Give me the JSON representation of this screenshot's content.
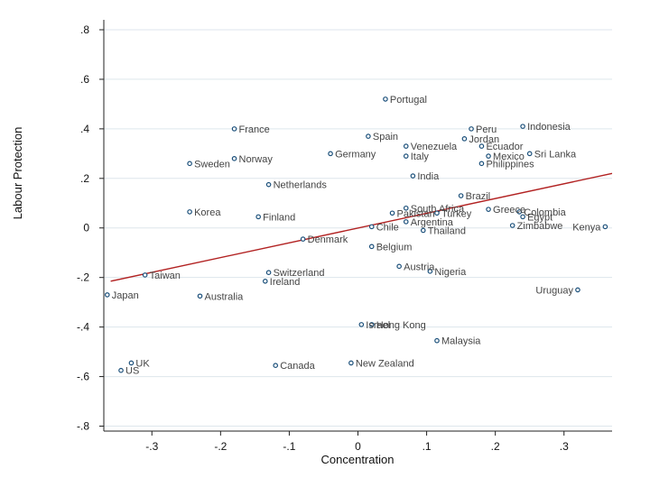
{
  "chart_data": {
    "type": "scatter",
    "xlabel": "Concentration",
    "ylabel": "Labour Protection",
    "xlim": [
      -0.37,
      0.37
    ],
    "ylim": [
      -0.82,
      0.84
    ],
    "xticks": [
      -0.3,
      -0.2,
      -0.1,
      0,
      0.1,
      0.2,
      0.3
    ],
    "xtick_labels": [
      "-.3",
      "-.2",
      "-.1",
      "0",
      ".1",
      ".2",
      ".3"
    ],
    "yticks": [
      0.8,
      0.6,
      0.4,
      0.2,
      0,
      -0.2,
      -0.4,
      -0.6,
      -0.8
    ],
    "ytick_labels": [
      ".8",
      ".6",
      ".4",
      ".2",
      "0",
      "-.2",
      "-.4",
      "-.6",
      "-.8"
    ],
    "fit_line": {
      "x": [
        -0.36,
        0.37
      ],
      "y": [
        -0.215,
        0.22
      ],
      "color": "#b22222"
    },
    "point_color": "#1a4f7a",
    "points": [
      {
        "label": "Portugal",
        "x": 0.04,
        "y": 0.52
      },
      {
        "label": "France",
        "x": -0.18,
        "y": 0.4
      },
      {
        "label": "Peru",
        "x": 0.165,
        "y": 0.4
      },
      {
        "label": "Indonesia",
        "x": 0.24,
        "y": 0.41
      },
      {
        "label": "Spain",
        "x": 0.015,
        "y": 0.37
      },
      {
        "label": "Jordan",
        "x": 0.155,
        "y": 0.36
      },
      {
        "label": "Venezuela",
        "x": 0.07,
        "y": 0.33
      },
      {
        "label": "Ecuador",
        "x": 0.18,
        "y": 0.33
      },
      {
        "label": "Germany",
        "x": -0.04,
        "y": 0.3
      },
      {
        "label": "Italy",
        "x": 0.07,
        "y": 0.29
      },
      {
        "label": "Mexico",
        "x": 0.19,
        "y": 0.29
      },
      {
        "label": "Sri Lanka",
        "x": 0.25,
        "y": 0.3
      },
      {
        "label": "Norway",
        "x": -0.18,
        "y": 0.28
      },
      {
        "label": "Sweden",
        "x": -0.245,
        "y": 0.26
      },
      {
        "label": "Philippines",
        "x": 0.18,
        "y": 0.26
      },
      {
        "label": "India",
        "x": 0.08,
        "y": 0.21
      },
      {
        "label": "Netherlands",
        "x": -0.13,
        "y": 0.175
      },
      {
        "label": "Brazil",
        "x": 0.15,
        "y": 0.13
      },
      {
        "label": "South Africa",
        "x": 0.07,
        "y": 0.08
      },
      {
        "label": "Greece",
        "x": 0.19,
        "y": 0.075
      },
      {
        "label": "Korea",
        "x": -0.245,
        "y": 0.065
      },
      {
        "label": "Pakistan",
        "x": 0.05,
        "y": 0.06
      },
      {
        "label": "Turkey",
        "x": 0.115,
        "y": 0.06
      },
      {
        "label": "Colombia",
        "x": 0.235,
        "y": 0.065
      },
      {
        "label": "Finland",
        "x": -0.145,
        "y": 0.045
      },
      {
        "label": "Egypt",
        "x": 0.24,
        "y": 0.045
      },
      {
        "label": "Argentina",
        "x": 0.07,
        "y": 0.025
      },
      {
        "label": "Chile",
        "x": 0.02,
        "y": 0.005
      },
      {
        "label": "Zimbabwe",
        "x": 0.225,
        "y": 0.01
      },
      {
        "label": "Kenya",
        "x": 0.36,
        "y": 0.005
      },
      {
        "label": "Thailand",
        "x": 0.095,
        "y": -0.01
      },
      {
        "label": "Denmark",
        "x": -0.08,
        "y": -0.045
      },
      {
        "label": "Belgium",
        "x": 0.02,
        "y": -0.075
      },
      {
        "label": "Austria",
        "x": 0.06,
        "y": -0.155
      },
      {
        "label": "Nigeria",
        "x": 0.105,
        "y": -0.175
      },
      {
        "label": "Taiwan",
        "x": -0.31,
        "y": -0.19
      },
      {
        "label": "Switzerland",
        "x": -0.13,
        "y": -0.18
      },
      {
        "label": "Ireland",
        "x": -0.135,
        "y": -0.215
      },
      {
        "label": "Uruguay",
        "x": 0.32,
        "y": -0.25
      },
      {
        "label": "Japan",
        "x": -0.365,
        "y": -0.27
      },
      {
        "label": "Australia",
        "x": -0.23,
        "y": -0.275
      },
      {
        "label": "Israel",
        "x": 0.005,
        "y": -0.39
      },
      {
        "label": "Hong Kong",
        "x": 0.02,
        "y": -0.39
      },
      {
        "label": "Malaysia",
        "x": 0.115,
        "y": -0.455
      },
      {
        "label": "UK",
        "x": -0.33,
        "y": -0.545
      },
      {
        "label": "Canada",
        "x": -0.12,
        "y": -0.555
      },
      {
        "label": "New Zealand",
        "x": -0.01,
        "y": -0.545
      },
      {
        "label": "US",
        "x": -0.345,
        "y": -0.575
      }
    ]
  }
}
